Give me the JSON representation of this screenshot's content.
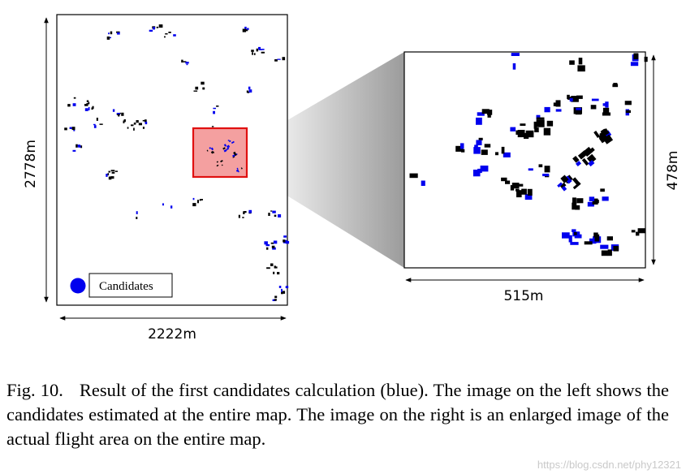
{
  "figure": {
    "left_map": {
      "width_label": "2222m",
      "height_label": "2778m",
      "legend_label": "Candidates"
    },
    "right_map": {
      "width_label": "515m",
      "height_label": "478m"
    },
    "colors": {
      "candidate": "#0000ee",
      "highlight_fill": "#f4a0a0",
      "highlight_stroke": "#e01010",
      "building": "#000000"
    }
  },
  "caption": {
    "label": "Fig. 10.",
    "text": "Result of the first candidates calculation (blue). The image on the left shows the candidates estimated at the entire map. The image on the right is an enlarged image of the actual flight area on the entire map."
  },
  "watermark": "https://blog.csdn.net/phy12321"
}
